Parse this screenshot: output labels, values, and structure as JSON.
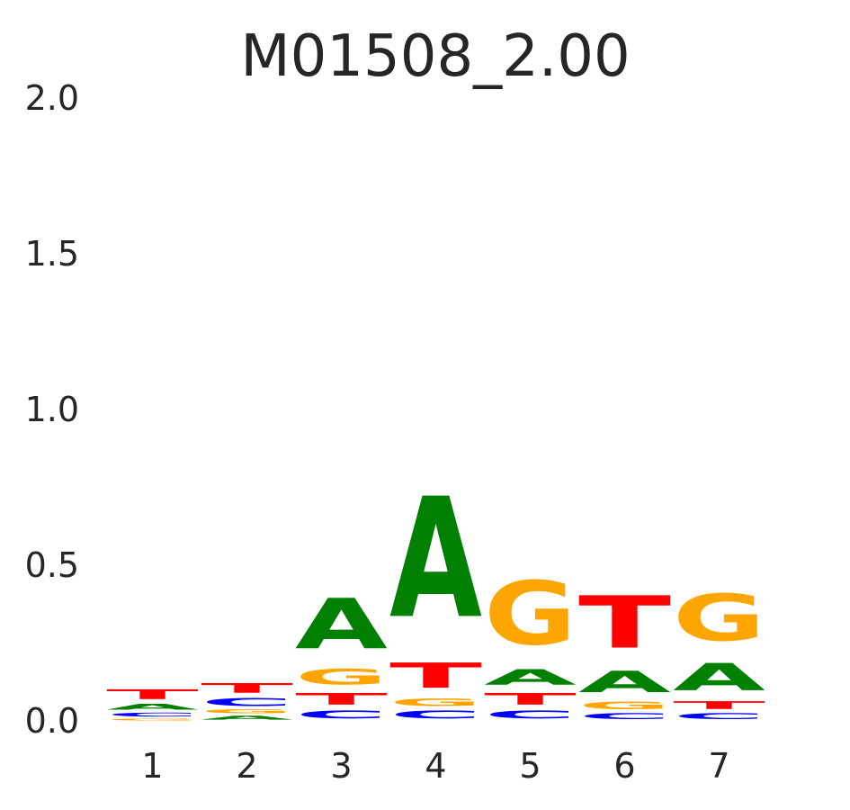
{
  "chart_data": {
    "type": "sequence-logo",
    "title": "M01508_2.00",
    "xlabel": "",
    "ylabel": "",
    "ylim": [
      0,
      2
    ],
    "yticks": [
      "0.0",
      "0.5",
      "1.0",
      "1.5",
      "2.0"
    ],
    "categories": [
      "1",
      "2",
      "3",
      "4",
      "5",
      "6",
      "7"
    ],
    "grid": false,
    "colors": {
      "A": "#008000",
      "C": "#0000ff",
      "G": "#ffa500",
      "T": "#ff0000"
    },
    "positions": [
      {
        "position": "1",
        "stack": [
          {
            "base": "G",
            "height": 0.01
          },
          {
            "base": "C",
            "height": 0.02
          },
          {
            "base": "A",
            "height": 0.03
          },
          {
            "base": "T",
            "height": 0.05
          }
        ]
      },
      {
        "position": "2",
        "stack": [
          {
            "base": "A",
            "height": 0.02
          },
          {
            "base": "G",
            "height": 0.02
          },
          {
            "base": "C",
            "height": 0.04
          },
          {
            "base": "T",
            "height": 0.05
          }
        ]
      },
      {
        "position": "3",
        "stack": [
          {
            "base": "C",
            "height": 0.04
          },
          {
            "base": "T",
            "height": 0.06
          },
          {
            "base": "G",
            "height": 0.08
          },
          {
            "base": "A",
            "height": 0.26
          }
        ]
      },
      {
        "position": "4",
        "stack": [
          {
            "base": "C",
            "height": 0.04
          },
          {
            "base": "G",
            "height": 0.04
          },
          {
            "base": "T",
            "height": 0.13
          },
          {
            "base": "A",
            "height": 0.62
          }
        ]
      },
      {
        "position": "5",
        "stack": [
          {
            "base": "C",
            "height": 0.04
          },
          {
            "base": "T",
            "height": 0.06
          },
          {
            "base": "A",
            "height": 0.08
          },
          {
            "base": "G",
            "height": 0.33
          }
        ]
      },
      {
        "position": "6",
        "stack": [
          {
            "base": "C",
            "height": 0.03
          },
          {
            "base": "G",
            "height": 0.04
          },
          {
            "base": "A",
            "height": 0.11
          },
          {
            "base": "T",
            "height": 0.27
          }
        ]
      },
      {
        "position": "7",
        "stack": [
          {
            "base": "C",
            "height": 0.03
          },
          {
            "base": "T",
            "height": 0.04
          },
          {
            "base": "A",
            "height": 0.14
          },
          {
            "base": "G",
            "height": 0.24
          }
        ]
      }
    ]
  }
}
